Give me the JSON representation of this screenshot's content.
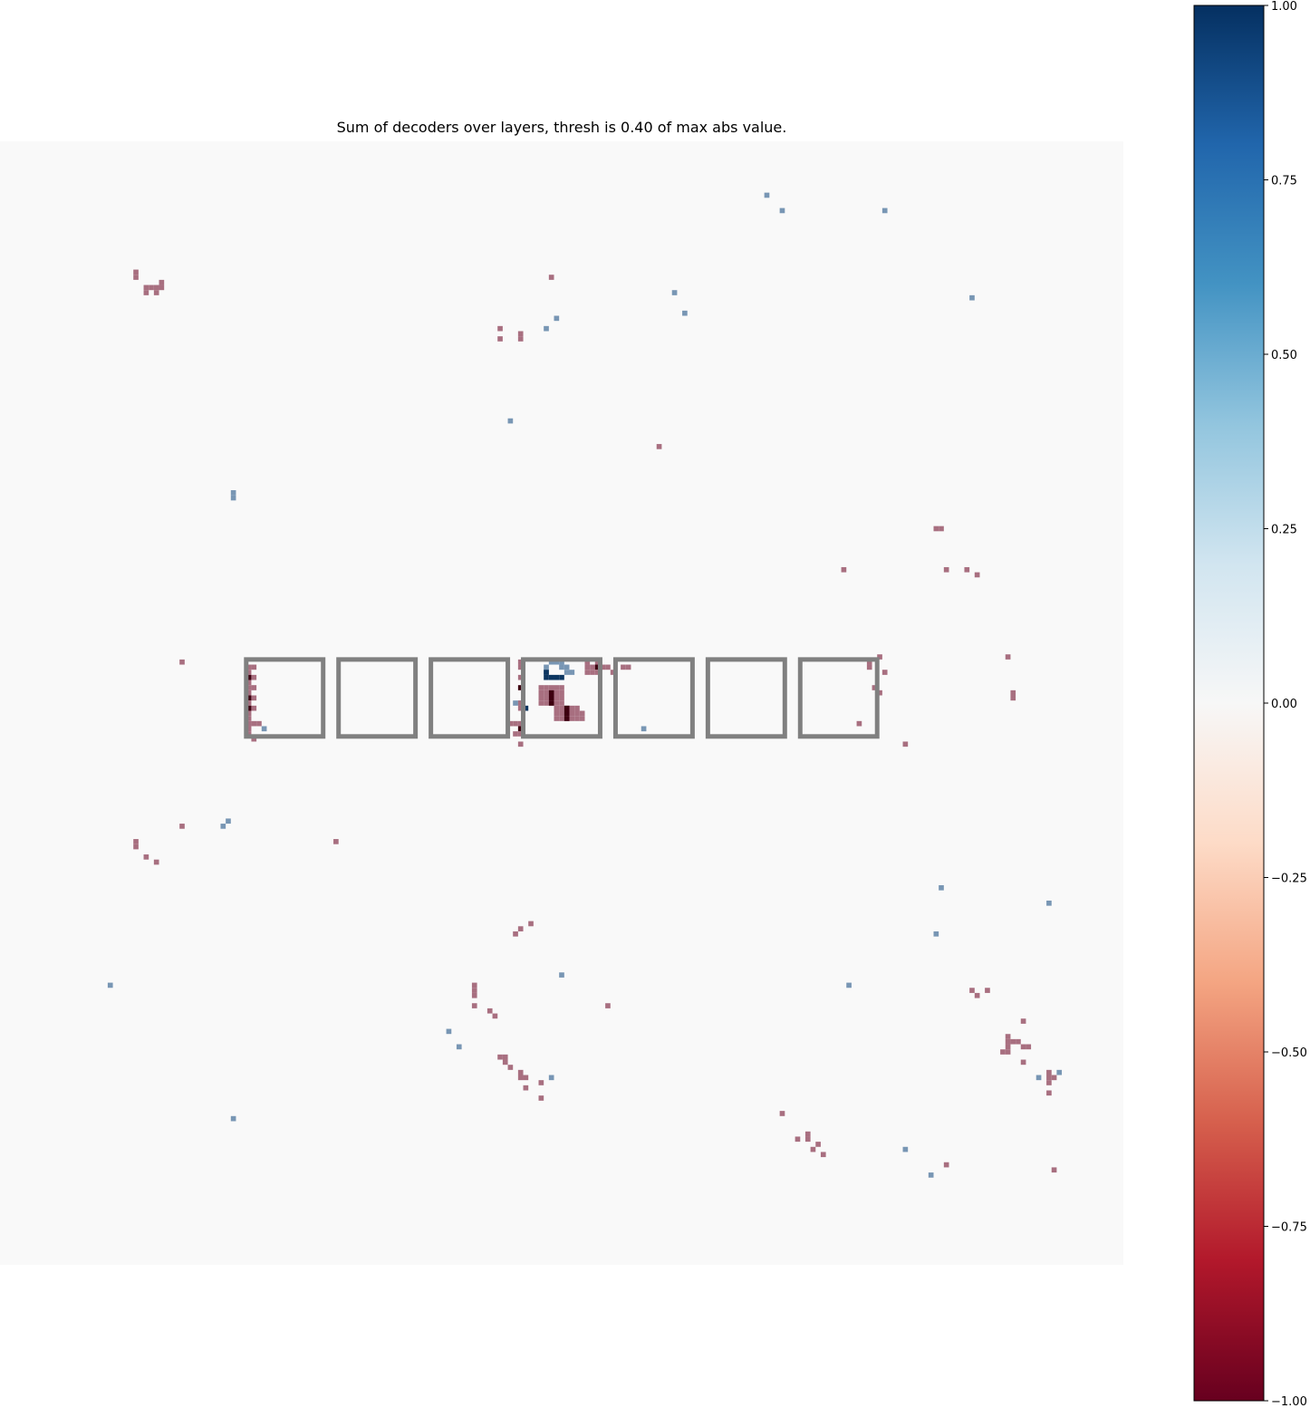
{
  "chart_data": {
    "type": "heatmap",
    "title": "Sum of decoders over layers, thresh is 0.40 of max abs value.",
    "grid_size": [
      219,
      219
    ],
    "colormap": "RdBu",
    "vmin": -1.0,
    "vmax": 1.0,
    "colorbar": {
      "ticks": [
        -1.0,
        -0.75,
        -0.5,
        -0.25,
        0.0,
        0.25,
        0.5,
        0.75,
        1.0
      ],
      "tick_labels": [
        "−1.00",
        "−0.75",
        "−0.50",
        "−0.25",
        "0.00",
        "0.25",
        "0.50",
        "0.75",
        "1.00"
      ],
      "placement": "right"
    },
    "grid": false,
    "box_outline_color": "#808080",
    "boxes": [
      {
        "x0": 48,
        "y0": 101,
        "x1": 63,
        "y1": 116
      },
      {
        "x0": 66,
        "y0": 101,
        "x1": 81,
        "y1": 116
      },
      {
        "x0": 84,
        "y0": 101,
        "x1": 99,
        "y1": 116
      },
      {
        "x0": 102,
        "y0": 101,
        "x1": 117,
        "y1": 116
      },
      {
        "x0": 120,
        "y0": 101,
        "x1": 135,
        "y1": 116
      },
      {
        "x0": 138,
        "y0": 101,
        "x1": 153,
        "y1": 116
      },
      {
        "x0": 156,
        "y0": 101,
        "x1": 171,
        "y1": 116
      }
    ],
    "cells": [
      [
        149,
        10,
        0.6
      ],
      [
        152,
        13,
        0.6
      ],
      [
        172,
        13,
        0.6
      ],
      [
        189,
        30,
        0.6
      ],
      [
        26,
        25,
        -0.6
      ],
      [
        26,
        26,
        -0.6
      ],
      [
        28,
        28,
        -0.6
      ],
      [
        28,
        29,
        -0.6
      ],
      [
        29,
        28,
        -0.6
      ],
      [
        30,
        28,
        -0.6
      ],
      [
        31,
        27,
        -0.6
      ],
      [
        31,
        28,
        -0.6
      ],
      [
        30,
        29,
        -0.6
      ],
      [
        107,
        26,
        -0.6
      ],
      [
        131,
        29,
        0.6
      ],
      [
        133,
        33,
        0.6
      ],
      [
        108,
        34,
        0.6
      ],
      [
        106,
        36,
        0.6
      ],
      [
        97,
        36,
        -0.6
      ],
      [
        97,
        38,
        -0.6
      ],
      [
        101,
        37,
        -0.6
      ],
      [
        101,
        38,
        -0.6
      ],
      [
        99,
        54,
        0.6
      ],
      [
        128,
        59,
        -0.6
      ],
      [
        45,
        68,
        0.6
      ],
      [
        45,
        69,
        0.6
      ],
      [
        182,
        75,
        -0.6
      ],
      [
        183,
        75,
        -0.6
      ],
      [
        164,
        83,
        -0.6
      ],
      [
        184,
        83,
        -0.6
      ],
      [
        188,
        83,
        -0.6
      ],
      [
        190,
        84,
        -0.6
      ],
      [
        35,
        101,
        -0.6
      ],
      [
        196,
        100,
        -0.6
      ],
      [
        169,
        101,
        -0.6
      ],
      [
        169,
        102,
        -0.6
      ],
      [
        171,
        100,
        -0.6
      ],
      [
        172,
        103,
        -0.6
      ],
      [
        197,
        107,
        -0.6
      ],
      [
        197,
        108,
        -0.6
      ],
      [
        170,
        106,
        -0.6
      ],
      [
        171,
        107,
        -0.6
      ],
      [
        167,
        113,
        -0.6
      ],
      [
        176,
        117,
        -0.6
      ],
      [
        48,
        102,
        -0.6
      ],
      [
        48,
        103,
        -0.6
      ],
      [
        48,
        104,
        -0.95
      ],
      [
        48,
        105,
        -0.6
      ],
      [
        48,
        106,
        -0.6
      ],
      [
        48,
        107,
        -0.6
      ],
      [
        48,
        108,
        -0.95
      ],
      [
        48,
        109,
        -0.6
      ],
      [
        48,
        110,
        -0.95
      ],
      [
        48,
        111,
        -0.6
      ],
      [
        48,
        112,
        -0.6
      ],
      [
        48,
        113,
        -0.6
      ],
      [
        48,
        114,
        -0.6
      ],
      [
        48,
        115,
        -0.6
      ],
      [
        49,
        102,
        -0.6
      ],
      [
        49,
        104,
        -0.6
      ],
      [
        49,
        106,
        -0.6
      ],
      [
        49,
        108,
        -0.6
      ],
      [
        49,
        110,
        -0.6
      ],
      [
        49,
        113,
        -0.6
      ],
      [
        50,
        113,
        -0.6
      ],
      [
        49,
        116,
        -0.6
      ],
      [
        51,
        114,
        0.6
      ],
      [
        106,
        102,
        0.6
      ],
      [
        106,
        103,
        0.6
      ],
      [
        107,
        101,
        0.6
      ],
      [
        108,
        101,
        0.6
      ],
      [
        109,
        101,
        0.6
      ],
      [
        109,
        102,
        0.6
      ],
      [
        110,
        102,
        0.6
      ],
      [
        110,
        103,
        0.6
      ],
      [
        111,
        103,
        0.6
      ],
      [
        106,
        104,
        0.95
      ],
      [
        107,
        104,
        0.95
      ],
      [
        108,
        104,
        0.95
      ],
      [
        109,
        104,
        0.95
      ],
      [
        106,
        103,
        0.95
      ],
      [
        100,
        109,
        0.6
      ],
      [
        101,
        109,
        0.6
      ],
      [
        102,
        110,
        0.95
      ],
      [
        105,
        106,
        -0.6
      ],
      [
        105,
        107,
        -0.6
      ],
      [
        105,
        108,
        -0.6
      ],
      [
        105,
        109,
        -0.6
      ],
      [
        106,
        106,
        -0.6
      ],
      [
        106,
        107,
        -0.6
      ],
      [
        106,
        108,
        -0.6
      ],
      [
        106,
        109,
        -0.6
      ],
      [
        107,
        106,
        -0.6
      ],
      [
        107,
        107,
        -0.6
      ],
      [
        107,
        108,
        -0.6
      ],
      [
        107,
        109,
        -0.6
      ],
      [
        108,
        106,
        -0.6
      ],
      [
        108,
        107,
        -0.6
      ],
      [
        108,
        108,
        -0.6
      ],
      [
        108,
        109,
        -0.6
      ],
      [
        109,
        106,
        -0.6
      ],
      [
        109,
        107,
        -0.6
      ],
      [
        109,
        108,
        -0.6
      ],
      [
        109,
        109,
        -0.6
      ],
      [
        107,
        107,
        -0.95
      ],
      [
        107,
        108,
        -0.95
      ],
      [
        107,
        109,
        -0.95
      ],
      [
        108,
        110,
        -0.6
      ],
      [
        108,
        111,
        -0.6
      ],
      [
        108,
        112,
        -0.6
      ],
      [
        109,
        110,
        -0.6
      ],
      [
        109,
        111,
        -0.6
      ],
      [
        109,
        112,
        -0.6
      ],
      [
        110,
        110,
        -0.6
      ],
      [
        110,
        111,
        -0.6
      ],
      [
        110,
        112,
        -0.6
      ],
      [
        111,
        110,
        -0.6
      ],
      [
        111,
        111,
        -0.6
      ],
      [
        111,
        112,
        -0.6
      ],
      [
        112,
        110,
        -0.6
      ],
      [
        112,
        111,
        -0.6
      ],
      [
        112,
        112,
        -0.6
      ],
      [
        113,
        111,
        -0.6
      ],
      [
        113,
        112,
        -0.6
      ],
      [
        110,
        110,
        -0.95
      ],
      [
        110,
        111,
        -0.95
      ],
      [
        110,
        112,
        -0.95
      ],
      [
        114,
        101,
        -0.6
      ],
      [
        114,
        102,
        -0.6
      ],
      [
        114,
        103,
        -0.6
      ],
      [
        115,
        102,
        -0.6
      ],
      [
        115,
        103,
        -0.6
      ],
      [
        116,
        101,
        -0.6
      ],
      [
        116,
        102,
        -0.95
      ],
      [
        116,
        103,
        -0.6
      ],
      [
        117,
        102,
        -0.6
      ],
      [
        118,
        102,
        -0.6
      ],
      [
        119,
        103,
        -0.6
      ],
      [
        121,
        102,
        -0.6
      ],
      [
        122,
        102,
        -0.6
      ],
      [
        101,
        101,
        -0.6
      ],
      [
        101,
        102,
        -0.6
      ],
      [
        101,
        104,
        -0.6
      ],
      [
        101,
        106,
        -0.95
      ],
      [
        101,
        109,
        -0.6
      ],
      [
        101,
        110,
        -0.6
      ],
      [
        101,
        113,
        -0.6
      ],
      [
        101,
        114,
        -0.95
      ],
      [
        101,
        115,
        -0.6
      ],
      [
        101,
        117,
        -0.6
      ],
      [
        99,
        113,
        -0.6
      ],
      [
        100,
        113,
        -0.6
      ],
      [
        100,
        115,
        -0.6
      ],
      [
        125,
        114,
        0.6
      ],
      [
        35,
        133,
        -0.6
      ],
      [
        26,
        136,
        -0.6
      ],
      [
        26,
        137,
        -0.6
      ],
      [
        28,
        139,
        -0.6
      ],
      [
        30,
        140,
        -0.6
      ],
      [
        43,
        133,
        0.6
      ],
      [
        44,
        132,
        0.6
      ],
      [
        65,
        136,
        -0.6
      ],
      [
        183,
        145,
        0.6
      ],
      [
        204,
        148,
        0.6
      ],
      [
        182,
        154,
        0.6
      ],
      [
        101,
        153,
        -0.6
      ],
      [
        103,
        152,
        -0.6
      ],
      [
        100,
        154,
        -0.6
      ],
      [
        109,
        162,
        0.6
      ],
      [
        21,
        164,
        0.6
      ],
      [
        165,
        164,
        0.6
      ],
      [
        92,
        164,
        -0.6
      ],
      [
        92,
        165,
        -0.6
      ],
      [
        92,
        166,
        -0.6
      ],
      [
        92,
        168,
        -0.6
      ],
      [
        95,
        169,
        -0.6
      ],
      [
        96,
        170,
        -0.6
      ],
      [
        118,
        168,
        -0.6
      ],
      [
        189,
        165,
        -0.6
      ],
      [
        190,
        166,
        -0.6
      ],
      [
        192,
        165,
        -0.6
      ],
      [
        199,
        171,
        -0.6
      ],
      [
        196,
        174,
        -0.6
      ],
      [
        196,
        175,
        -0.6
      ],
      [
        196,
        176,
        -0.6
      ],
      [
        197,
        175,
        -0.6
      ],
      [
        198,
        175,
        -0.6
      ],
      [
        199,
        176,
        -0.6
      ],
      [
        200,
        176,
        -0.6
      ],
      [
        195,
        177,
        -0.6
      ],
      [
        196,
        177,
        -0.6
      ],
      [
        199,
        179,
        -0.6
      ],
      [
        87,
        173,
        0.6
      ],
      [
        89,
        176,
        0.6
      ],
      [
        97,
        178,
        -0.6
      ],
      [
        98,
        178,
        -0.6
      ],
      [
        98,
        179,
        -0.6
      ],
      [
        99,
        180,
        -0.6
      ],
      [
        101,
        181,
        -0.6
      ],
      [
        101,
        182,
        -0.6
      ],
      [
        102,
        182,
        -0.6
      ],
      [
        102,
        184,
        -0.6
      ],
      [
        105,
        183,
        -0.6
      ],
      [
        105,
        186,
        -0.6
      ],
      [
        107,
        182,
        0.6
      ],
      [
        204,
        181,
        -0.6
      ],
      [
        204,
        182,
        -0.6
      ],
      [
        205,
        182,
        -0.6
      ],
      [
        204,
        183,
        -0.6
      ],
      [
        204,
        185,
        -0.6
      ],
      [
        206,
        181,
        0.6
      ],
      [
        202,
        182,
        0.6
      ],
      [
        45,
        190,
        0.6
      ],
      [
        152,
        189,
        -0.6
      ],
      [
        155,
        194,
        -0.6
      ],
      [
        157,
        193,
        -0.6
      ],
      [
        157,
        194,
        -0.6
      ],
      [
        159,
        195,
        -0.6
      ],
      [
        158,
        196,
        -0.6
      ],
      [
        160,
        197,
        -0.6
      ],
      [
        176,
        196,
        0.6
      ],
      [
        181,
        201,
        0.6
      ],
      [
        184,
        199,
        -0.6
      ],
      [
        205,
        200,
        -0.6
      ]
    ]
  }
}
